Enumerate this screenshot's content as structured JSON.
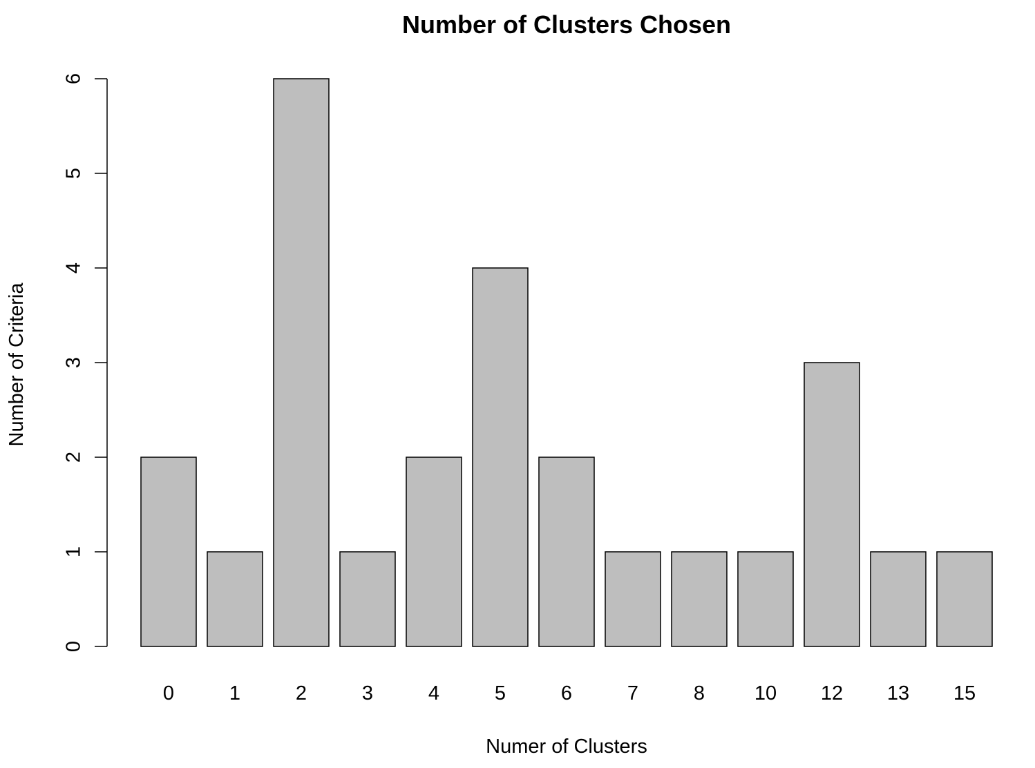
{
  "chart_data": {
    "type": "bar",
    "title": "Number of Clusters Chosen",
    "xlabel": "Numer of Clusters",
    "ylabel": "Number of Criteria",
    "categories": [
      "0",
      "1",
      "2",
      "3",
      "4",
      "5",
      "6",
      "7",
      "8",
      "10",
      "12",
      "13",
      "15"
    ],
    "values": [
      2,
      1,
      6,
      1,
      2,
      4,
      2,
      1,
      1,
      1,
      3,
      1,
      1
    ],
    "ylim": [
      0,
      6
    ],
    "yticks": [
      "0",
      "1",
      "2",
      "3",
      "4",
      "5",
      "6"
    ],
    "grid": false,
    "legend": "none",
    "bar_color": "#bebebe",
    "bar_border_color": "#000000"
  }
}
